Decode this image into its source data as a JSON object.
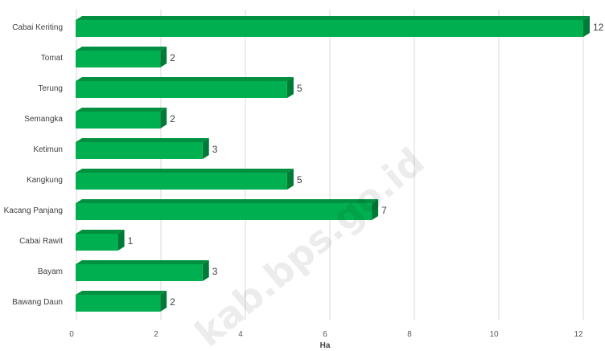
{
  "chart_data": {
    "type": "bar",
    "orientation": "horizontal",
    "categories": [
      "Cabai Keriting",
      "Tomat",
      "Terung",
      "Semangka",
      "Ketimun",
      "Kangkung",
      "Kacang Panjang",
      "Cabai Rawit",
      "Bayam",
      "Bawang Daun"
    ],
    "values": [
      12,
      2,
      5,
      2,
      3,
      5,
      7,
      1,
      3,
      2
    ],
    "xlabel": "Ha",
    "ylabel": "",
    "xlim": [
      0,
      12
    ],
    "xticks": [
      0,
      2,
      4,
      6,
      8,
      10,
      12
    ],
    "grid": "vertical",
    "legend": "none",
    "bar_color": "#00b050",
    "bar_side_color": "#007a37",
    "bar_top_color": "#00903f",
    "grid_color": "#d9d9d9"
  },
  "watermark": "kab.bps.go.id"
}
